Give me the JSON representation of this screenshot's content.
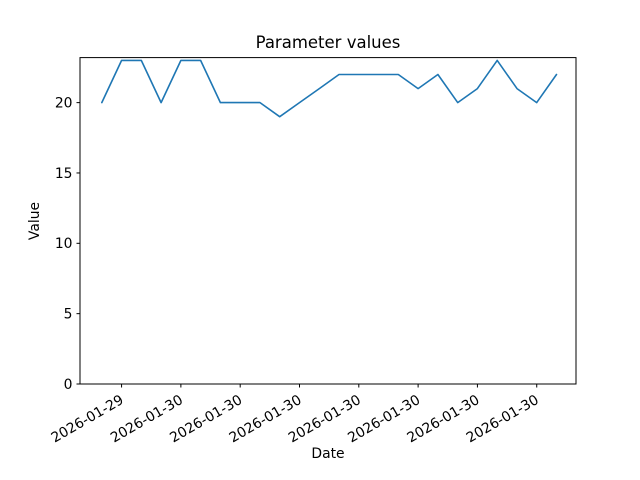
{
  "chart_data": {
    "type": "line",
    "title": "Parameter values",
    "xlabel": "Date",
    "ylabel": "Value",
    "line_color": "#1f77b4",
    "values": [
      20,
      23,
      23,
      20,
      23,
      23,
      20,
      20,
      20,
      19,
      20,
      21,
      22,
      22,
      22,
      22,
      21,
      22,
      20,
      21,
      23,
      21,
      20,
      22
    ],
    "y_ticks": [
      0,
      5,
      10,
      15,
      20
    ],
    "ylim": [
      0,
      23.2
    ],
    "x_tick_indices": [
      1,
      4,
      7,
      10,
      13,
      16,
      19,
      22
    ],
    "x_tick_labels": [
      "2026-01-29",
      "2026-01-30",
      "2026-01-30",
      "2026-01-30",
      "2026-01-30",
      "2026-01-30",
      "2026-01-30",
      "2026-01-30"
    ],
    "x_tick_rotation": 30,
    "grid": false,
    "legend": null,
    "axis_color": "#000000"
  }
}
